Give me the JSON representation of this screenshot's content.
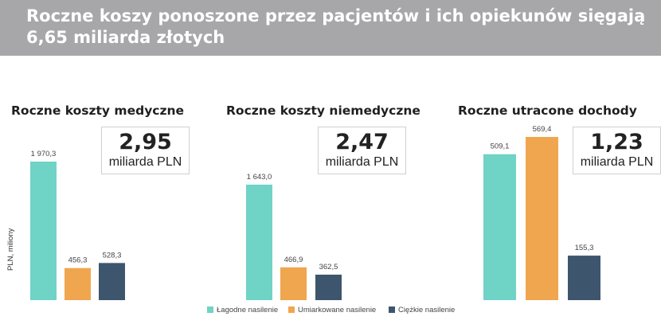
{
  "title_line1": "Roczne koszy ponoszone przez pacjentów i ich opiekunów sięgają",
  "title_line2": "6,65 miliarda złotych",
  "colors": {
    "header_bg": "#a7a6a9",
    "mild": "#6fd3c6",
    "moderate": "#f0a64e",
    "severe": "#3d566e"
  },
  "chart_data": [
    {
      "type": "bar",
      "title": "Roczne koszty medyczne",
      "total_value": "2,95",
      "total_unit": "miliarda PLN",
      "ylabel": "PLN, miliony",
      "categories": [
        "Łagodne nasilenie",
        "Umiarkowane nasilenie",
        "Ciężkie nasilenie"
      ],
      "values": [
        1970.3,
        456.3,
        528.3
      ],
      "labels": [
        "1 970,3",
        "456,3",
        "528,3"
      ]
    },
    {
      "type": "bar",
      "title": "Roczne koszty niemedyczne",
      "total_value": "2,47",
      "total_unit": "miliarda PLN",
      "categories": [
        "Łagodne nasilenie",
        "Umiarkowane nasilenie",
        "Ciężkie nasilenie"
      ],
      "values": [
        1643.0,
        466.9,
        362.5
      ],
      "labels": [
        "1 643,0",
        "466,9",
        "362,5"
      ]
    },
    {
      "type": "bar",
      "title": "Roczne utracone dochody",
      "total_value": "1,23",
      "total_unit": "miliarda PLN",
      "categories": [
        "Łagodne nasilenie",
        "Umiarkowane nasilenie",
        "Ciężkie nasilenie"
      ],
      "values": [
        509.1,
        569.4,
        155.3
      ],
      "labels": [
        "509,1",
        "569,4",
        "155,3"
      ]
    }
  ],
  "legend": [
    {
      "label": "Łagodne nasilenie",
      "color": "#6fd3c6"
    },
    {
      "label": "Umiarkowane nasilenie",
      "color": "#f0a64e"
    },
    {
      "label": "Ciężkie nasilenie",
      "color": "#3d566e"
    }
  ]
}
